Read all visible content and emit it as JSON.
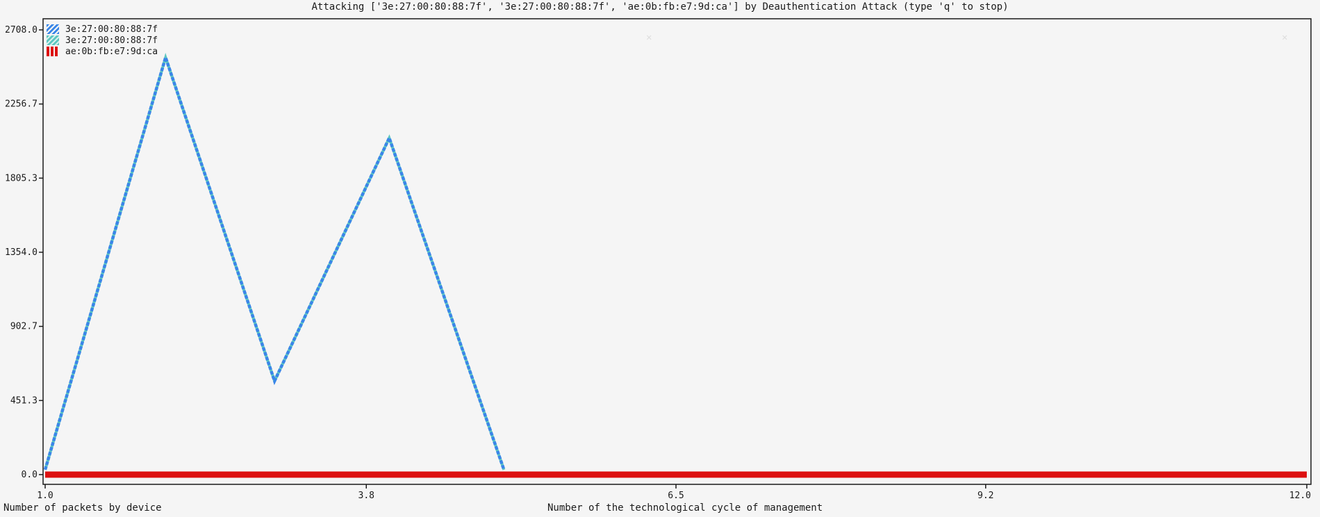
{
  "window": {
    "title": "Attacking ['3e:27:00:80:88:7f', '3e:27:00:80:88:7f', 'ae:0b:fb:e7:9d:ca'] by Deauthentication Attack (type 'q' to stop)"
  },
  "colors": {
    "background": "#f5f5f5",
    "frame": "#1a1a1a",
    "series_blue": "#3a86e8",
    "series_teal": "#5cc6c0",
    "series_red": "#dd1111"
  },
  "chart_data": {
    "type": "line",
    "title": "",
    "xlabel": "Number of the technological cycle of management",
    "ylabel": "Number of packets by device",
    "xlim": [
      1.0,
      12.0
    ],
    "ylim": [
      0.0,
      2708.0
    ],
    "x_ticks": [
      "1.0",
      "3.8",
      "6.5",
      "9.2",
      "12.0"
    ],
    "y_ticks": [
      "0.0",
      "451.3",
      "902.7",
      "1354.0",
      "1805.3",
      "2256.7",
      "2708.0"
    ],
    "grid": false,
    "legend_position": "top-left",
    "series": [
      {
        "name": "3e:27:00:80:88:7f",
        "color": "#3a86e8",
        "x": [
          1.0,
          2.05,
          3.0,
          4.0,
          5.0
        ],
        "y": [
          30,
          2540,
          570,
          2050,
          30
        ]
      },
      {
        "name": "3e:27:00:80:88:7f",
        "color": "#5cc6c0",
        "x": [
          1.0,
          2.05,
          3.0,
          4.0,
          5.0
        ],
        "y": [
          30,
          2540,
          570,
          2050,
          30
        ]
      },
      {
        "name": "ae:0b:fb:e7:9d:ca",
        "color": "#dd1111",
        "x": [
          1.0,
          12.0
        ],
        "y": [
          0.0,
          0.0
        ]
      }
    ]
  }
}
